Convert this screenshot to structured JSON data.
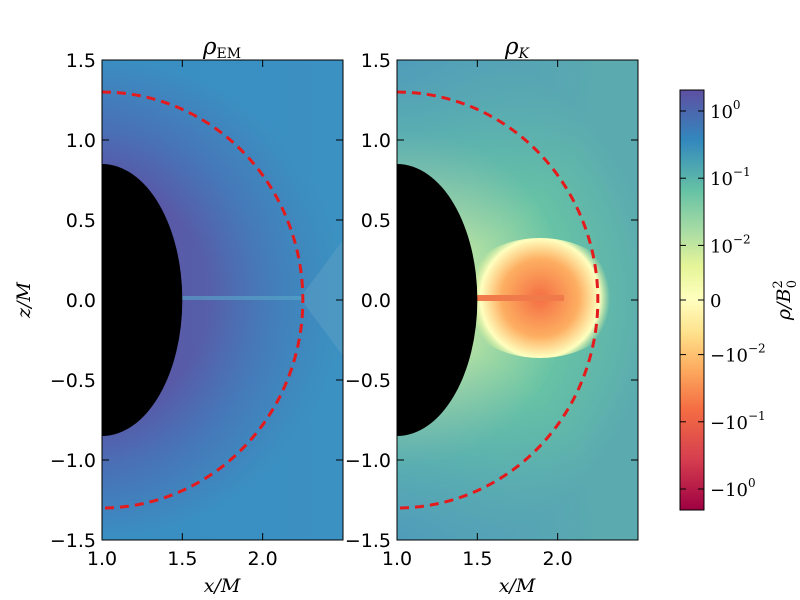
{
  "chart_data": [
    {
      "type": "heatmap",
      "title": "ρ",
      "title_sub": "EM",
      "xlabel": "x/M",
      "ylabel": "z/M",
      "xlim": [
        1.0,
        2.5
      ],
      "ylim": [
        -1.5,
        1.5
      ],
      "x_ticks": [
        {
          "value": 1.0,
          "label": "1.0"
        },
        {
          "value": 1.5,
          "label": "1.5"
        },
        {
          "value": 2.0,
          "label": "2.0"
        }
      ],
      "y_ticks": [
        {
          "value": 1.5,
          "label": "1.5"
        },
        {
          "value": 1.0,
          "label": "1.0"
        },
        {
          "value": 0.5,
          "label": "0.5"
        },
        {
          "value": 0.0,
          "label": "0.0"
        },
        {
          "value": -0.5,
          "label": "−0.5"
        },
        {
          "value": -1.0,
          "label": "−1.0"
        },
        {
          "value": -1.5,
          "label": "−1.5"
        }
      ],
      "horizon_radius": 1.5,
      "ergosphere_dashed_radius": 2.25,
      "dashed_color": "#e41a1c",
      "grid": false
    },
    {
      "type": "heatmap",
      "title": "ρ",
      "title_sub": "K",
      "xlabel": "x/M",
      "xlim": [
        1.0,
        2.5
      ],
      "ylim": [
        -1.5,
        1.5
      ],
      "x_ticks": [
        {
          "value": 1.0,
          "label": "1.0"
        },
        {
          "value": 1.5,
          "label": "1.5"
        },
        {
          "value": 2.0,
          "label": "2.0"
        }
      ],
      "y_ticks": [
        {
          "value": 1.5,
          "label": "1.5"
        },
        {
          "value": 1.0,
          "label": "1.0"
        },
        {
          "value": 0.5,
          "label": "0.5"
        },
        {
          "value": 0.0,
          "label": "0.0"
        },
        {
          "value": -0.5,
          "label": "−0.5"
        },
        {
          "value": -1.0,
          "label": "−1.0"
        },
        {
          "value": -1.5,
          "label": "−1.5"
        }
      ],
      "horizon_radius": 1.5,
      "ergosphere_dashed_radius": 2.25,
      "dashed_color": "#e41a1c",
      "grid": false
    }
  ],
  "colorbar": {
    "label": "ρ/B",
    "label_sup": "2",
    "label_sub": "0",
    "colormap": "Spectral",
    "scale": "symlog",
    "ticks": [
      {
        "label": "10",
        "sup": "0"
      },
      {
        "label": "10",
        "sup": "−1"
      },
      {
        "label": "10",
        "sup": "−2"
      },
      {
        "label": "0",
        "sup": ""
      },
      {
        "label": "−10",
        "sup": "−2"
      },
      {
        "label": "−10",
        "sup": "−1"
      },
      {
        "label": "−10",
        "sup": "0"
      }
    ],
    "tick_positions": [
      0.05,
      0.21,
      0.37,
      0.5,
      0.63,
      0.79,
      0.95
    ],
    "colors": [
      "#5e4fa2",
      "#3288bd",
      "#66c2a5",
      "#abdda4",
      "#e6f598",
      "#ffffbf",
      "#fee08b",
      "#fdae61",
      "#f46d43",
      "#d53e4f",
      "#9e0142"
    ]
  }
}
